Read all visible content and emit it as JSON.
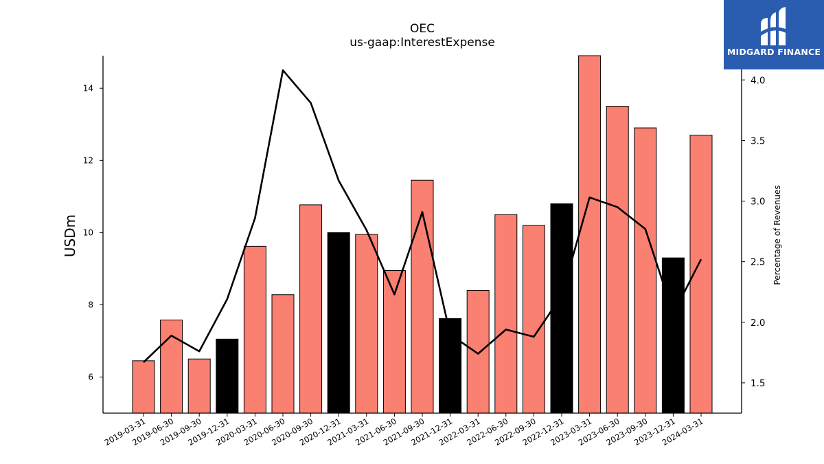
{
  "chart_data": {
    "type": "bar",
    "title": "OEC",
    "subtitle": "us-gaap:InterestExpense",
    "ylabel": "USDm",
    "ylabel_right": "Percentage of Revenues",
    "categories": [
      "2019-03-31",
      "2019-06-30",
      "2019-09-30",
      "2019-12-31",
      "2020-03-31",
      "2020-06-30",
      "2020-09-30",
      "2020-12-31",
      "2021-03-31",
      "2021-06-30",
      "2021-09-30",
      "2021-12-31",
      "2022-03-31",
      "2022-06-30",
      "2022-09-30",
      "2022-12-31",
      "2023-03-31",
      "2023-06-30",
      "2023-09-30",
      "2023-12-31",
      "2024-03-31"
    ],
    "series": [
      {
        "type": "bar",
        "axis": "left",
        "values": [
          6.45,
          7.58,
          6.5,
          7.05,
          9.62,
          8.28,
          10.77,
          10.0,
          9.95,
          8.95,
          11.45,
          7.62,
          8.4,
          10.5,
          10.2,
          10.8,
          15.0,
          13.5,
          12.9,
          9.3,
          12.7
        ],
        "colors": [
          "#fa8072",
          "#fa8072",
          "#fa8072",
          "#000000",
          "#fa8072",
          "#fa8072",
          "#fa8072",
          "#000000",
          "#fa8072",
          "#fa8072",
          "#fa8072",
          "#000000",
          "#fa8072",
          "#fa8072",
          "#fa8072",
          "#000000",
          "#fa8072",
          "#fa8072",
          "#fa8072",
          "#000000",
          "#fa8072"
        ]
      },
      {
        "type": "line",
        "axis": "right",
        "color": "#000000",
        "values": [
          1.67,
          1.89,
          1.76,
          2.19,
          2.86,
          4.08,
          3.81,
          3.17,
          2.76,
          2.23,
          2.91,
          1.9,
          1.74,
          1.94,
          1.88,
          2.22,
          3.03,
          2.95,
          2.77,
          2.07,
          2.52
        ]
      }
    ],
    "ylim": [
      5.0,
      14.9
    ],
    "yticks": [
      6,
      8,
      10,
      12,
      14
    ],
    "ylim_right": [
      1.25,
      4.2
    ],
    "yticks_right": [
      1.5,
      2.0,
      2.5,
      3.0,
      3.5,
      4.0
    ],
    "ytick_labels_right": [
      "1.5",
      "2.0",
      "2.5",
      "3.0",
      "3.5",
      "4.0"
    ],
    "grid": false,
    "legend": "none"
  },
  "logo": {
    "text": "MIDGARD FINANCE",
    "color": "#2a5db0"
  }
}
